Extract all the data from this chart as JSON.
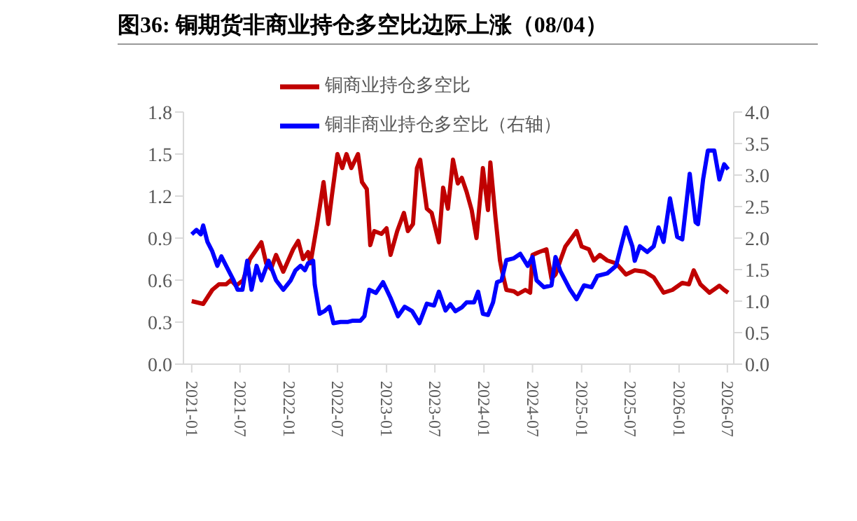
{
  "chart_data": {
    "type": "line",
    "title": "图36:  铜期货非商业持仓多空比边际上涨（08/04）",
    "xlim": [
      "2020-12-01",
      "2026-07-25"
    ],
    "xticks": [
      "2021-01",
      "2021-07",
      "2022-01",
      "2022-07",
      "2023-01",
      "2023-07",
      "2024-01",
      "2024-07",
      "2025-01",
      "2025-07",
      "2026-01",
      "2026-07"
    ],
    "ylim": [
      0,
      1.8
    ],
    "yticks": [
      {
        "value": 0,
        "label": "0.0"
      },
      0.3,
      0.6,
      0.9,
      1.2,
      1.5,
      1.8
    ],
    "y2lim": [
      0,
      4
    ],
    "y2ticks": [
      {
        "value": 0,
        "label": "0.0"
      },
      0.5,
      {
        "value": 1,
        "label": "1.0"
      },
      1.5,
      {
        "value": 2,
        "label": "2.0"
      },
      2.5,
      {
        "value": 3,
        "label": "3.0"
      },
      3.5,
      {
        "value": 4,
        "label": "4.0"
      }
    ],
    "grid": false,
    "legend": "top",
    "marker": "none",
    "line_style": "solid",
    "series": [
      {
        "name": "铜商业持仓多空比",
        "color": "#c00000",
        "x": [
          "2021-01-01",
          "2021-02-13",
          "2021-03-19",
          "2021-04-13",
          "2021-05-10",
          "2021-05-28",
          "2021-06-16",
          "2021-07-13",
          "2021-08-07",
          "2021-08-25",
          "2021-09-19",
          "2021-10-07",
          "2021-10-25",
          "2021-11-13",
          "2021-12-10",
          "2022-01-16",
          "2022-02-04",
          "2022-02-22",
          "2022-03-13",
          "2022-03-22",
          "2022-04-16",
          "2022-05-10",
          "2022-05-28",
          "2022-06-10",
          "2022-07-01",
          "2022-07-19",
          "2022-08-04",
          "2022-08-22",
          "2022-09-16",
          "2022-10-01",
          "2022-10-19",
          "2022-11-01",
          "2022-11-16",
          "2022-12-13",
          "2023-01-01",
          "2023-01-16",
          "2023-02-10",
          "2023-03-07",
          "2023-03-22",
          "2023-04-10",
          "2023-04-25",
          "2023-05-07",
          "2023-06-01",
          "2023-06-19",
          "2023-07-16",
          "2023-08-01",
          "2023-08-19",
          "2023-09-07",
          "2023-09-25",
          "2023-10-10",
          "2023-10-28",
          "2023-11-16",
          "2023-12-04",
          "2023-12-28",
          "2024-01-16",
          "2024-01-25",
          "2024-02-13",
          "2024-03-01",
          "2024-03-07",
          "2024-03-25",
          "2024-04-22",
          "2024-05-07",
          "2024-06-04",
          "2024-06-22",
          "2024-07-01",
          "2024-07-25",
          "2024-08-22",
          "2024-09-10",
          "2024-09-25",
          "2024-10-13",
          "2024-11-01",
          "2024-11-28",
          "2024-12-13",
          "2025-01-01",
          "2025-01-28",
          "2025-02-16",
          "2025-03-10",
          "2025-04-07",
          "2025-05-10",
          "2025-06-16",
          "2025-07-19",
          "2025-08-25",
          "2025-09-28",
          "2025-11-04",
          "2025-12-07",
          "2026-01-13",
          "2026-02-07",
          "2026-02-25",
          "2026-03-22",
          "2026-04-25",
          "2026-06-01",
          "2026-06-19",
          "2026-07-04"
        ],
        "values": [
          0.45,
          0.43,
          0.53,
          0.57,
          0.57,
          0.6,
          0.56,
          0.6,
          0.75,
          0.8,
          0.87,
          0.72,
          0.68,
          0.78,
          0.66,
          0.82,
          0.88,
          0.75,
          0.8,
          0.72,
          1.0,
          1.3,
          1.0,
          1.2,
          1.5,
          1.4,
          1.5,
          1.4,
          1.5,
          1.3,
          1.25,
          0.85,
          0.95,
          0.93,
          0.97,
          0.78,
          0.95,
          1.08,
          0.95,
          1.0,
          1.4,
          1.46,
          1.11,
          1.08,
          0.87,
          1.26,
          1.11,
          1.46,
          1.29,
          1.33,
          1.23,
          1.1,
          0.9,
          1.4,
          1.1,
          1.44,
          1.05,
          0.74,
          0.68,
          0.53,
          0.52,
          0.5,
          0.53,
          0.51,
          0.78,
          0.8,
          0.82,
          0.61,
          0.64,
          0.74,
          0.84,
          0.91,
          0.95,
          0.84,
          0.82,
          0.74,
          0.78,
          0.74,
          0.72,
          0.64,
          0.67,
          0.66,
          0.62,
          0.51,
          0.53,
          0.58,
          0.57,
          0.67,
          0.57,
          0.51,
          0.56,
          0.53,
          0.51
        ]
      },
      {
        "name": "铜非商业持仓多空比（右轴）",
        "color": "#0000ff",
        "axis": "y2",
        "x": [
          "2021-01-01",
          "2021-01-19",
          "2021-02-04",
          "2021-02-13",
          "2021-03-01",
          "2021-03-19",
          "2021-04-07",
          "2021-04-22",
          "2021-05-10",
          "2021-06-07",
          "2021-06-22",
          "2021-07-10",
          "2021-07-28",
          "2021-08-13",
          "2021-09-01",
          "2021-09-19",
          "2021-10-16",
          "2021-11-13",
          "2021-12-10",
          "2022-01-07",
          "2022-01-25",
          "2022-02-13",
          "2022-03-01",
          "2022-03-13",
          "2022-04-01",
          "2022-04-07",
          "2022-04-25",
          "2022-05-13",
          "2022-06-01",
          "2022-06-16",
          "2022-07-13",
          "2022-08-10",
          "2022-08-28",
          "2022-09-25",
          "2022-10-10",
          "2022-10-28",
          "2022-11-22",
          "2022-12-19",
          "2023-01-16",
          "2023-02-13",
          "2023-03-10",
          "2023-04-07",
          "2023-05-04",
          "2023-06-01",
          "2023-06-28",
          "2023-07-16",
          "2023-08-10",
          "2023-08-28",
          "2023-09-16",
          "2023-10-10",
          "2023-10-28",
          "2023-11-25",
          "2023-12-10",
          "2023-12-28",
          "2024-01-16",
          "2024-02-04",
          "2024-02-19",
          "2024-03-07",
          "2024-03-25",
          "2024-04-22",
          "2024-05-16",
          "2024-06-13",
          "2024-07-01",
          "2024-07-16",
          "2024-08-13",
          "2024-09-10",
          "2024-09-25",
          "2024-10-13",
          "2024-11-19",
          "2024-12-13",
          "2025-01-10",
          "2025-02-07",
          "2025-03-01",
          "2025-04-07",
          "2025-05-10",
          "2025-06-16",
          "2025-07-10",
          "2025-07-19",
          "2025-08-07",
          "2025-09-04",
          "2025-09-28",
          "2025-10-16",
          "2025-11-04",
          "2025-11-28",
          "2025-12-25",
          "2026-01-13",
          "2026-02-10",
          "2026-03-04",
          "2026-03-13",
          "2026-04-01",
          "2026-04-19",
          "2026-05-13",
          "2026-06-01",
          "2026-06-19",
          "2026-07-04"
        ],
        "values": [
          2.06,
          2.13,
          2.06,
          2.2,
          1.94,
          1.79,
          1.56,
          1.71,
          1.56,
          1.33,
          1.18,
          1.18,
          1.64,
          1.18,
          1.56,
          1.33,
          1.64,
          1.33,
          1.18,
          1.33,
          1.49,
          1.56,
          1.49,
          1.6,
          1.64,
          1.26,
          0.8,
          0.84,
          0.91,
          0.65,
          0.67,
          0.67,
          0.69,
          0.69,
          0.76,
          1.18,
          1.13,
          1.3,
          1.05,
          0.76,
          0.91,
          0.84,
          0.65,
          0.96,
          0.93,
          1.15,
          0.85,
          0.95,
          0.84,
          0.9,
          0.98,
          0.98,
          1.15,
          0.8,
          0.78,
          0.98,
          1.3,
          1.33,
          1.65,
          1.68,
          1.75,
          1.56,
          1.7,
          1.33,
          1.22,
          1.25,
          1.7,
          1.48,
          1.18,
          1.03,
          1.25,
          1.22,
          1.4,
          1.44,
          1.56,
          2.17,
          1.87,
          1.64,
          1.87,
          1.78,
          1.87,
          2.17,
          1.94,
          2.63,
          2.02,
          1.98,
          3.02,
          2.25,
          2.22,
          2.93,
          3.39,
          3.39,
          2.93,
          3.17,
          3.09
        ]
      }
    ]
  }
}
